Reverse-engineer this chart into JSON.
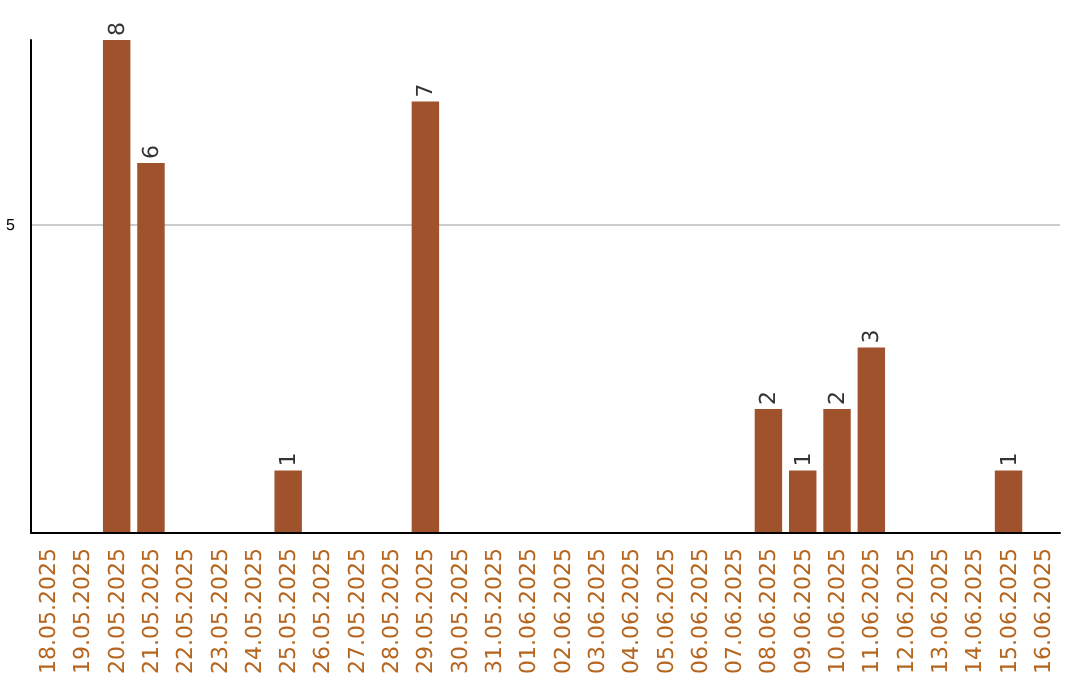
{
  "chart_data": {
    "type": "bar",
    "categories": [
      "18.05.2025",
      "19.05.2025",
      "20.05.2025",
      "21.05.2025",
      "22.05.2025",
      "23.05.2025",
      "24.05.2025",
      "25.05.2025",
      "26.05.2025",
      "27.05.2025",
      "28.05.2025",
      "29.05.2025",
      "30.05.2025",
      "31.05.2025",
      "01.06.2025",
      "02.06.2025",
      "03.06.2025",
      "04.06.2025",
      "05.06.2025",
      "06.06.2025",
      "07.06.2025",
      "08.06.2025",
      "09.06.2025",
      "10.06.2025",
      "11.06.2025",
      "12.06.2025",
      "13.06.2025",
      "14.06.2025",
      "15.06.2025",
      "16.06.2025"
    ],
    "values": [
      0,
      0,
      8,
      6,
      0,
      0,
      0,
      1,
      0,
      0,
      0,
      7,
      0,
      0,
      0,
      0,
      0,
      0,
      0,
      0,
      0,
      2,
      1,
      2,
      3,
      0,
      0,
      0,
      1,
      0
    ],
    "value_labels": [
      null,
      null,
      "8",
      "6",
      null,
      null,
      null,
      "1",
      null,
      null,
      null,
      "7",
      null,
      null,
      null,
      null,
      null,
      null,
      null,
      null,
      null,
      "2",
      "1",
      "2",
      "3",
      null,
      null,
      null,
      "1",
      null
    ],
    "color": "#a0522d",
    "ylim": [
      0,
      8
    ],
    "yticks": [
      5
    ],
    "grid": "y"
  }
}
